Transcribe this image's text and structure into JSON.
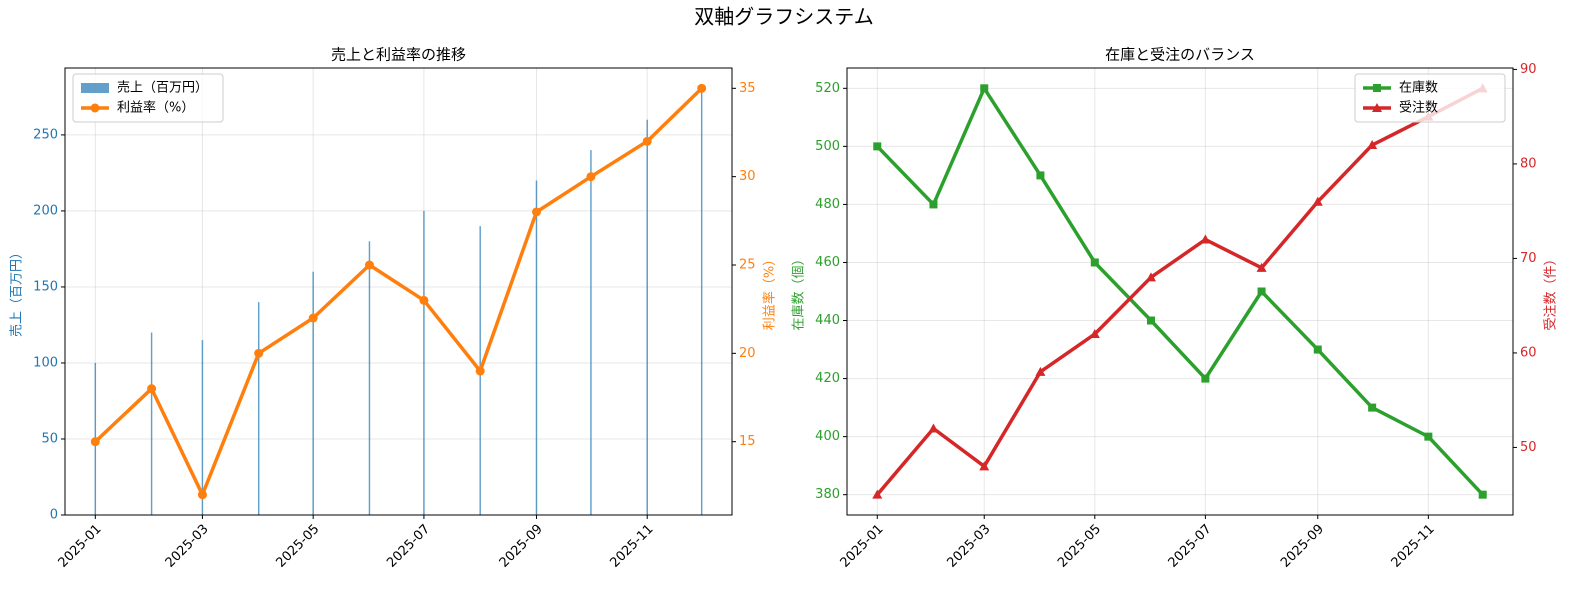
{
  "title": "双軸グラフシステム",
  "chart_data": [
    {
      "type": "bar",
      "title": "売上と利益率の推移",
      "x": [
        "2025-01",
        "2025-02",
        "2025-03",
        "2025-04",
        "2025-05",
        "2025-06",
        "2025-07",
        "2025-08",
        "2025-09",
        "2025-10",
        "2025-11",
        "2025-12"
      ],
      "xticks": [
        "2025-01",
        "2025-03",
        "2025-05",
        "2025-07",
        "2025-09",
        "2025-11"
      ],
      "ylabel": "売上（百万円）",
      "y2label": "利益率（%）",
      "ylim": [
        0,
        294
      ],
      "yticks": [
        0,
        50,
        100,
        150,
        200,
        250
      ],
      "y2lim": [
        10.85,
        36.15
      ],
      "y2ticks": [
        15,
        20,
        25,
        30,
        35
      ],
      "grid": true,
      "legend": "upper left",
      "series": [
        {
          "name": "売上（百万円）",
          "type": "bar",
          "color": "#1f77b4",
          "values": [
            100,
            120,
            115,
            140,
            160,
            180,
            200,
            190,
            220,
            240,
            260,
            280
          ]
        },
        {
          "name": "利益率（%）",
          "type": "line",
          "marker": "circle",
          "axis": "y2",
          "color": "#ff7f0e",
          "values": [
            15,
            18,
            12,
            20,
            22,
            25,
            23,
            19,
            28,
            30,
            32,
            35
          ]
        }
      ]
    },
    {
      "type": "line",
      "title": "在庫と受注のバランス",
      "x": [
        "2025-01",
        "2025-02",
        "2025-03",
        "2025-04",
        "2025-05",
        "2025-06",
        "2025-07",
        "2025-08",
        "2025-09",
        "2025-10",
        "2025-11",
        "2025-12"
      ],
      "xticks": [
        "2025-01",
        "2025-03",
        "2025-05",
        "2025-07",
        "2025-09",
        "2025-11"
      ],
      "ylabel": "在庫数（個）",
      "y2label": "受注数（件）",
      "ylim": [
        373,
        527
      ],
      "yticks": [
        380,
        400,
        420,
        440,
        460,
        480,
        500,
        520
      ],
      "y2lim": [
        42.85,
        90.15
      ],
      "y2ticks": [
        50,
        60,
        70,
        80,
        90
      ],
      "grid": true,
      "legend": "upper right",
      "series": [
        {
          "name": "在庫数",
          "type": "line",
          "marker": "square",
          "color": "#2ca02c",
          "values": [
            500,
            480,
            520,
            490,
            460,
            440,
            420,
            450,
            430,
            410,
            400,
            380
          ]
        },
        {
          "name": "受注数",
          "type": "line",
          "marker": "triangle",
          "axis": "y2",
          "color": "#d62728",
          "values": [
            45,
            52,
            48,
            58,
            62,
            68,
            72,
            69,
            76,
            82,
            85,
            88
          ]
        }
      ]
    }
  ]
}
